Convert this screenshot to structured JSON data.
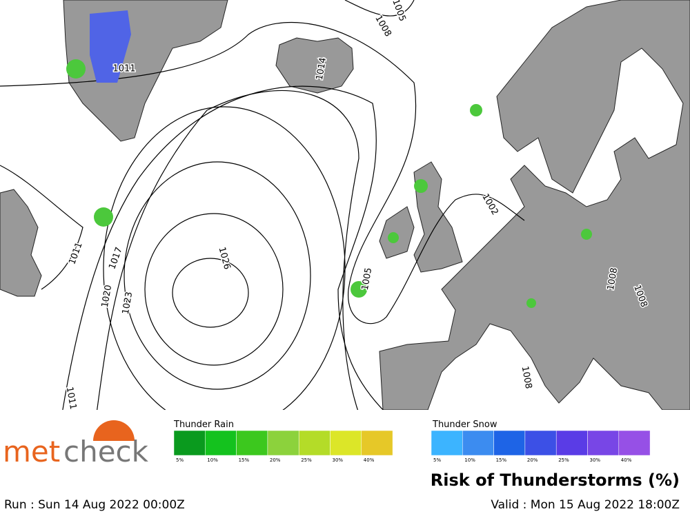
{
  "logo": {
    "part1": "met",
    "part2": "check"
  },
  "legend": {
    "rain": {
      "title": "Thunder Rain",
      "colors": [
        "#0a9a1e",
        "#14c21e",
        "#3cc81e",
        "#8cd23c",
        "#b4dc28",
        "#dce628",
        "#e6c828"
      ],
      "labels": [
        "5%",
        "10%",
        "15%",
        "20%",
        "25%",
        "30%",
        "40%"
      ]
    },
    "snow": {
      "title": "Thunder Snow",
      "colors": [
        "#3cb4ff",
        "#3c8cf0",
        "#1e64e6",
        "#3c50e6",
        "#5a3ce6",
        "#7846e6",
        "#9650e6"
      ],
      "labels": [
        "5%",
        "10%",
        "15%",
        "20%",
        "25%",
        "30%",
        "40%"
      ]
    }
  },
  "title": "Risk of Thunderstorms (%)",
  "run": "Run : Sun 14 Aug 2022 00:00Z",
  "valid": "Valid : Mon 15 Aug 2022 18:00Z",
  "isobar_labels": [
    "1011",
    "1014",
    "1008",
    "1005",
    "1026",
    "1023",
    "1020",
    "1017",
    "1011",
    "1005",
    "1002",
    "1011",
    "1008",
    "1008",
    "1008"
  ]
}
